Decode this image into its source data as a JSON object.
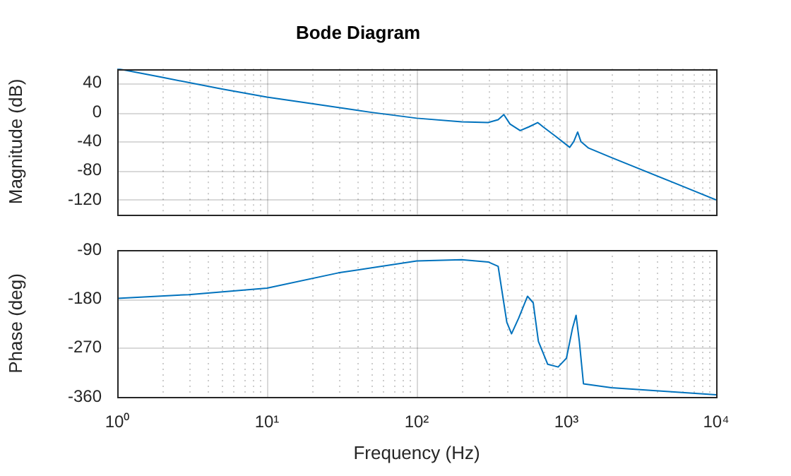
{
  "chart_data": [
    {
      "type": "line",
      "title": "Bode Diagram",
      "ylabel": "Magnitude (dB)",
      "log": "x",
      "grid": true,
      "tick_labels": "y",
      "xlim": [
        1,
        10000
      ],
      "ylim": [
        -140,
        60
      ],
      "xticks": [
        {
          "value": 1,
          "label": null
        },
        {
          "value": 2,
          "label": null
        },
        {
          "value": 3,
          "label": null
        },
        {
          "value": 4,
          "label": null
        },
        {
          "value": 5,
          "label": null
        },
        {
          "value": 6,
          "label": null
        },
        {
          "value": 7,
          "label": null
        },
        {
          "value": 8,
          "label": null
        },
        {
          "value": 9,
          "label": null
        },
        {
          "value": 10,
          "label": null
        },
        {
          "value": 20,
          "label": null
        },
        {
          "value": 30,
          "label": null
        },
        {
          "value": 40,
          "label": null
        },
        {
          "value": 50,
          "label": null
        },
        {
          "value": 60,
          "label": null
        },
        {
          "value": 70,
          "label": null
        },
        {
          "value": 80,
          "label": null
        },
        {
          "value": 90,
          "label": null
        },
        {
          "value": 100,
          "label": null
        },
        {
          "value": 200,
          "label": null
        },
        {
          "value": 300,
          "label": null
        },
        {
          "value": 400,
          "label": null
        },
        {
          "value": 500,
          "label": null
        },
        {
          "value": 600,
          "label": null
        },
        {
          "value": 700,
          "label": null
        },
        {
          "value": 800,
          "label": null
        },
        {
          "value": 900,
          "label": null
        },
        {
          "value": 1000,
          "label": null
        },
        {
          "value": 2000,
          "label": null
        },
        {
          "value": 3000,
          "label": null
        },
        {
          "value": 4000,
          "label": null
        },
        {
          "value": 5000,
          "label": null
        },
        {
          "value": 6000,
          "label": null
        },
        {
          "value": 7000,
          "label": null
        },
        {
          "value": 8000,
          "label": null
        },
        {
          "value": 9000,
          "label": null
        },
        {
          "value": 10000,
          "label": null
        }
      ],
      "yticks": [
        -120,
        -80,
        -40,
        0,
        40
      ],
      "x": [
        1,
        2,
        5,
        10,
        20,
        50,
        100,
        200,
        300,
        350,
        382,
        420,
        491,
        560,
        643,
        700,
        850,
        1052,
        1120,
        1189,
        1250,
        1406,
        2000,
        5000,
        10000
      ],
      "series": [
        {
          "color": "#0072bd",
          "values": [
            60,
            48,
            32,
            21,
            12,
            0,
            -8,
            -13,
            -14,
            -10,
            -3,
            -16,
            -25,
            -20,
            -14,
            -20,
            -33,
            -48,
            -40,
            -27,
            -40,
            -49,
            -62,
            -95,
            -120
          ]
        }
      ]
    },
    {
      "type": "line",
      "xlabel": "Frequency (Hz)",
      "ylabel": "Phase (deg)",
      "log": "x",
      "grid": true,
      "xlim": [
        1,
        10000
      ],
      "ylim": [
        -360,
        -90
      ],
      "xticks": [
        {
          "value": 1,
          "label": "10⁰"
        },
        {
          "value": 2,
          "label": null
        },
        {
          "value": 3,
          "label": null
        },
        {
          "value": 4,
          "label": null
        },
        {
          "value": 5,
          "label": null
        },
        {
          "value": 6,
          "label": null
        },
        {
          "value": 7,
          "label": null
        },
        {
          "value": 8,
          "label": null
        },
        {
          "value": 9,
          "label": null
        },
        {
          "value": 10,
          "label": "10¹"
        },
        {
          "value": 20,
          "label": null
        },
        {
          "value": 30,
          "label": null
        },
        {
          "value": 40,
          "label": null
        },
        {
          "value": 50,
          "label": null
        },
        {
          "value": 60,
          "label": null
        },
        {
          "value": 70,
          "label": null
        },
        {
          "value": 80,
          "label": null
        },
        {
          "value": 90,
          "label": null
        },
        {
          "value": 100,
          "label": "10²"
        },
        {
          "value": 200,
          "label": null
        },
        {
          "value": 300,
          "label": null
        },
        {
          "value": 400,
          "label": null
        },
        {
          "value": 500,
          "label": null
        },
        {
          "value": 600,
          "label": null
        },
        {
          "value": 700,
          "label": null
        },
        {
          "value": 800,
          "label": null
        },
        {
          "value": 900,
          "label": null
        },
        {
          "value": 1000,
          "label": "10³"
        },
        {
          "value": 2000,
          "label": null
        },
        {
          "value": 3000,
          "label": null
        },
        {
          "value": 4000,
          "label": null
        },
        {
          "value": 5000,
          "label": null
        },
        {
          "value": 6000,
          "label": null
        },
        {
          "value": 7000,
          "label": null
        },
        {
          "value": 8000,
          "label": null
        },
        {
          "value": 9000,
          "label": null
        },
        {
          "value": 10000,
          "label": "10⁴"
        }
      ],
      "yticks": [
        -360,
        -270,
        -180,
        -90
      ],
      "x": [
        1,
        3,
        10,
        30,
        100,
        200,
        300,
        350,
        370,
        400,
        430,
        480,
        550,
        600,
        650,
        750,
        880,
        1000,
        1100,
        1160,
        1220,
        1300,
        2000,
        10000
      ],
      "series": [
        {
          "color": "#0072bd",
          "values": [
            -179,
            -172,
            -160,
            -132,
            -110,
            -108,
            -112,
            -120,
            -163,
            -223,
            -244,
            -215,
            -175,
            -187,
            -258,
            -300,
            -305,
            -289,
            -233,
            -210,
            -258,
            -336,
            -343,
            -356
          ]
        }
      ]
    }
  ]
}
